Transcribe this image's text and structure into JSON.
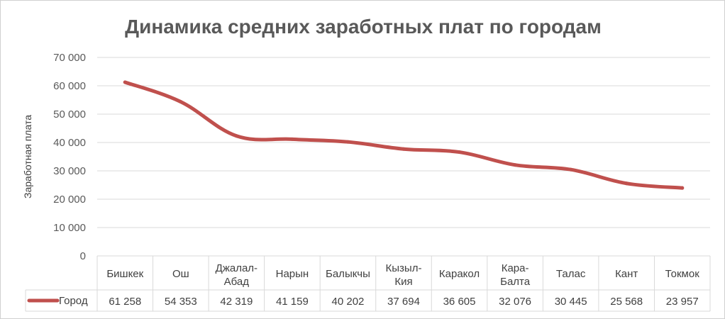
{
  "chart_data": {
    "type": "line",
    "title": "Динамика средних заработных плат по городам",
    "ylabel": "Заработная плата",
    "xlabel": "",
    "ylim": [
      0,
      70000
    ],
    "y_ticks": [
      "0",
      "10 000",
      "20 000",
      "30 000",
      "40 000",
      "50 000",
      "60 000",
      "70 000"
    ],
    "grid": true,
    "legend_placement": "data-table-left",
    "categories": [
      [
        "Бишкек"
      ],
      [
        "Ош"
      ],
      [
        "Джалал-",
        "Абад"
      ],
      [
        "Нарын"
      ],
      [
        "Балыкчы"
      ],
      [
        "Кызыл-",
        "Кия"
      ],
      [
        "Каракол"
      ],
      [
        "Кара-",
        "Балта"
      ],
      [
        "Талас"
      ],
      [
        "Кант"
      ],
      [
        "Токмок"
      ]
    ],
    "series": [
      {
        "name": "Город",
        "color": "#c0504d",
        "values": [
          61258,
          54353,
          42319,
          41159,
          40202,
          37694,
          36605,
          32076,
          30445,
          25568,
          23957
        ],
        "value_labels": [
          "61 258",
          "54 353",
          "42 319",
          "41 159",
          "40 202",
          "37 694",
          "36 605",
          "32 076",
          "30 445",
          "25 568",
          "23 957"
        ]
      }
    ]
  }
}
